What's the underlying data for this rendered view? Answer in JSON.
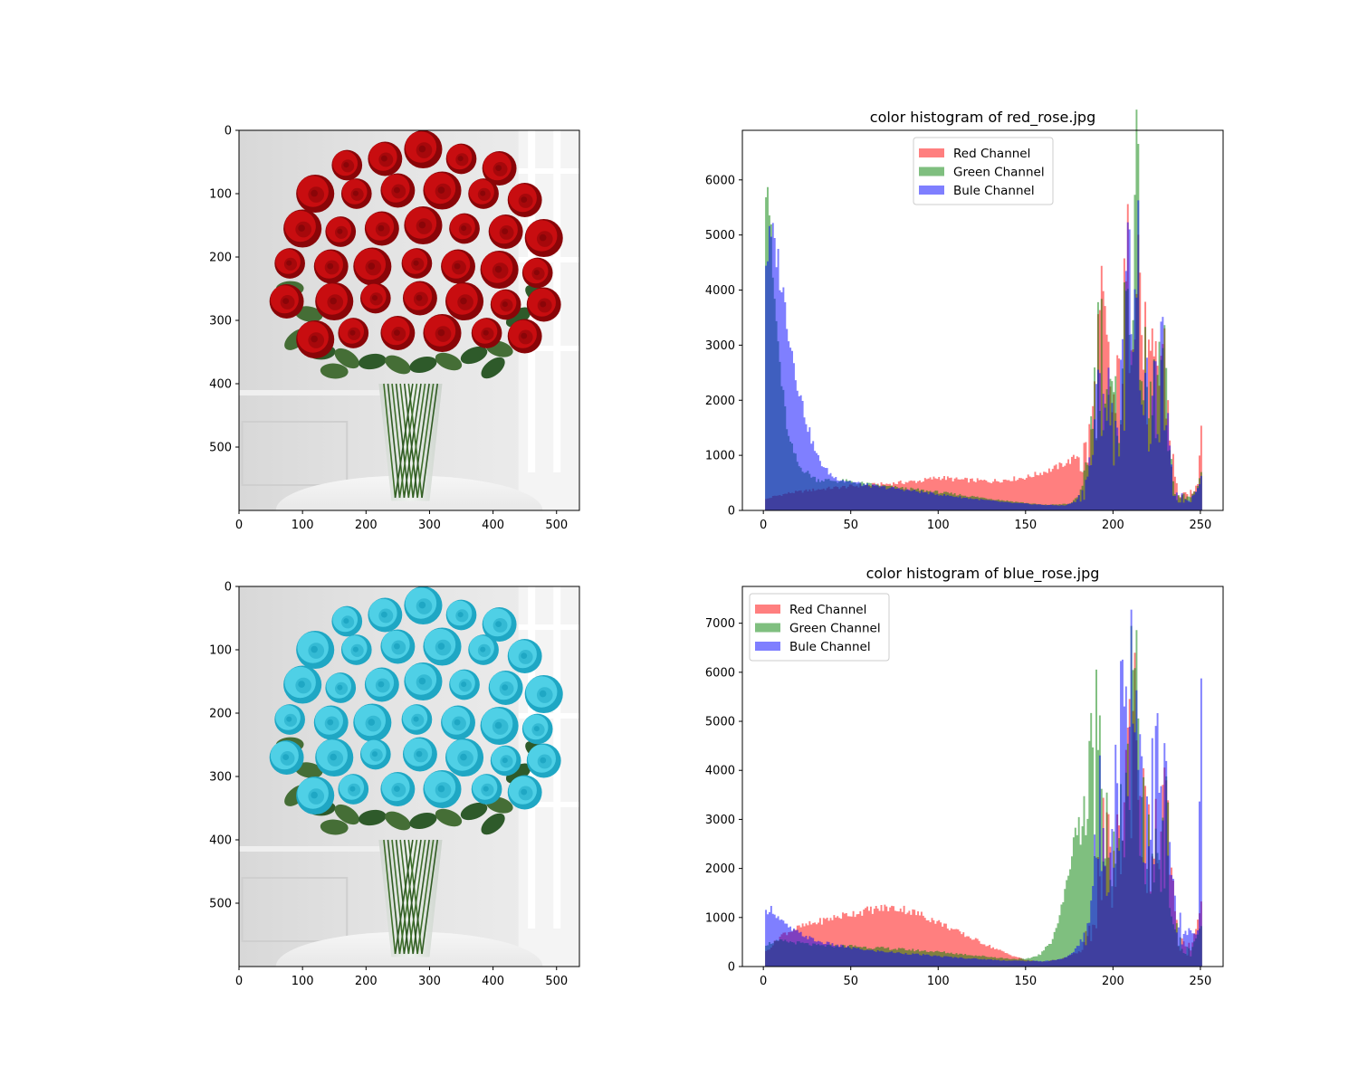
{
  "figure": {
    "background": "#ffffff"
  },
  "images": [
    {
      "xticks": [
        0,
        100,
        200,
        300,
        400,
        500
      ],
      "yticks": [
        0,
        100,
        200,
        300,
        400,
        500
      ],
      "width": 536,
      "height": 600,
      "flower_color": "#c80d10",
      "flower_shade": "#8a0508"
    },
    {
      "xticks": [
        0,
        100,
        200,
        300,
        400,
        500
      ],
      "yticks": [
        0,
        100,
        200,
        300,
        400,
        500
      ],
      "width": 536,
      "height": 600,
      "flower_color": "#4fd0e6",
      "flower_shade": "#1fa7c4"
    }
  ],
  "chart_data": [
    {
      "type": "histogram",
      "title": "color histogram of red_rose.jpg",
      "xlabel": "",
      "ylabel": "",
      "xlim": [
        -12,
        263
      ],
      "ylim": [
        0,
        6900
      ],
      "xticks": [
        0,
        50,
        100,
        150,
        200,
        250
      ],
      "yticks": [
        0,
        1000,
        2000,
        3000,
        4000,
        5000,
        6000
      ],
      "legend": {
        "position": "upper-center",
        "entries": [
          "Red Channel",
          "Green Channel",
          "Bule Channel"
        ]
      },
      "bins": 256,
      "series": [
        {
          "name": "Red Channel",
          "color": "#ff0000",
          "alpha": 0.5,
          "control_points": [
            [
              1,
              200
            ],
            [
              5,
              250
            ],
            [
              15,
              320
            ],
            [
              30,
              380
            ],
            [
              50,
              440
            ],
            [
              70,
              480
            ],
            [
              90,
              540
            ],
            [
              100,
              600
            ],
            [
              110,
              560
            ],
            [
              130,
              530
            ],
            [
              150,
              600
            ],
            [
              165,
              750
            ],
            [
              175,
              900
            ],
            [
              182,
              1050
            ],
            [
              186,
              1400
            ],
            [
              189,
              2200
            ],
            [
              192,
              3700
            ],
            [
              195,
              3300
            ],
            [
              198,
              2400
            ],
            [
              201,
              2000
            ],
            [
              204,
              2900
            ],
            [
              207,
              4200
            ],
            [
              210,
              5200
            ],
            [
              212,
              6300
            ],
            [
              214,
              5500
            ],
            [
              217,
              3200
            ],
            [
              220,
              2700
            ],
            [
              223,
              2500
            ],
            [
              226,
              2900
            ],
            [
              228,
              3500
            ],
            [
              230,
              2600
            ],
            [
              232,
              1600
            ],
            [
              234,
              900
            ],
            [
              236,
              450
            ],
            [
              240,
              260
            ],
            [
              245,
              300
            ],
            [
              248,
              500
            ],
            [
              250,
              1600
            ]
          ]
        },
        {
          "name": "Green Channel",
          "color": "#008000",
          "alpha": 0.5,
          "control_points": [
            [
              1,
              6100
            ],
            [
              2,
              6000
            ],
            [
              3,
              5500
            ],
            [
              5,
              4200
            ],
            [
              7,
              3400
            ],
            [
              10,
              2300
            ],
            [
              14,
              1300
            ],
            [
              20,
              800
            ],
            [
              30,
              560
            ],
            [
              40,
              540
            ],
            [
              50,
              520
            ],
            [
              60,
              470
            ],
            [
              80,
              400
            ],
            [
              100,
              330
            ],
            [
              120,
              250
            ],
            [
              140,
              170
            ],
            [
              160,
              100
            ],
            [
              175,
              120
            ],
            [
              182,
              350
            ],
            [
              186,
              1300
            ],
            [
              189,
              2500
            ],
            [
              192,
              3600
            ],
            [
              195,
              2900
            ],
            [
              198,
              2100
            ],
            [
              201,
              1900
            ],
            [
              204,
              2700
            ],
            [
              207,
              4000
            ],
            [
              210,
              5100
            ],
            [
              212,
              6100
            ],
            [
              214,
              5200
            ],
            [
              217,
              2800
            ],
            [
              220,
              2100
            ],
            [
              223,
              2300
            ],
            [
              226,
              2800
            ],
            [
              228,
              3200
            ],
            [
              230,
              2100
            ],
            [
              232,
              1000
            ],
            [
              234,
              500
            ],
            [
              237,
              300
            ],
            [
              242,
              250
            ],
            [
              247,
              350
            ],
            [
              250,
              700
            ]
          ]
        },
        {
          "name": "Bule Channel",
          "color": "#0000ff",
          "alpha": 0.5,
          "control_points": [
            [
              1,
              4500
            ],
            [
              3,
              4850
            ],
            [
              5,
              4900
            ],
            [
              7,
              4700
            ],
            [
              9,
              4300
            ],
            [
              12,
              3700
            ],
            [
              15,
              3100
            ],
            [
              18,
              2500
            ],
            [
              22,
              1900
            ],
            [
              26,
              1400
            ],
            [
              30,
              1000
            ],
            [
              35,
              750
            ],
            [
              40,
              600
            ],
            [
              50,
              520
            ],
            [
              60,
              450
            ],
            [
              80,
              380
            ],
            [
              100,
              290
            ],
            [
              120,
              210
            ],
            [
              140,
              140
            ],
            [
              160,
              100
            ],
            [
              172,
              90
            ],
            [
              178,
              160
            ],
            [
              183,
              420
            ],
            [
              187,
              1050
            ],
            [
              190,
              1900
            ],
            [
              193,
              2800
            ],
            [
              196,
              2300
            ],
            [
              199,
              1800
            ],
            [
              202,
              1700
            ],
            [
              205,
              2600
            ],
            [
              208,
              4200
            ],
            [
              210,
              5300
            ],
            [
              212,
              5900
            ],
            [
              214,
              4800
            ],
            [
              217,
              2600
            ],
            [
              220,
              1900
            ],
            [
              223,
              2100
            ],
            [
              226,
              2500
            ],
            [
              228,
              2900
            ],
            [
              230,
              1800
            ],
            [
              232,
              950
            ],
            [
              234,
              450
            ],
            [
              237,
              270
            ],
            [
              242,
              220
            ],
            [
              247,
              330
            ],
            [
              250,
              600
            ]
          ]
        }
      ]
    },
    {
      "type": "histogram",
      "title": "color histogram of blue_rose.jpg",
      "xlabel": "",
      "ylabel": "",
      "xlim": [
        -12,
        263
      ],
      "ylim": [
        0,
        7750
      ],
      "xticks": [
        0,
        50,
        100,
        150,
        200,
        250
      ],
      "yticks": [
        0,
        1000,
        2000,
        3000,
        4000,
        5000,
        6000,
        7000
      ],
      "legend": {
        "position": "upper-left",
        "entries": [
          "Red Channel",
          "Green Channel",
          "Bule Channel"
        ]
      },
      "bins": 256,
      "series": [
        {
          "name": "Red Channel",
          "color": "#ff0000",
          "alpha": 0.5,
          "control_points": [
            [
              1,
              300
            ],
            [
              5,
              450
            ],
            [
              10,
              650
            ],
            [
              20,
              800
            ],
            [
              30,
              900
            ],
            [
              40,
              1000
            ],
            [
              50,
              1080
            ],
            [
              60,
              1150
            ],
            [
              70,
              1200
            ],
            [
              80,
              1170
            ],
            [
              90,
              1050
            ],
            [
              100,
              900
            ],
            [
              110,
              720
            ],
            [
              120,
              560
            ],
            [
              130,
              400
            ],
            [
              140,
              250
            ],
            [
              150,
              130
            ],
            [
              160,
              100
            ],
            [
              170,
              150
            ],
            [
              180,
              300
            ],
            [
              186,
              700
            ],
            [
              190,
              1600
            ],
            [
              194,
              2700
            ],
            [
              198,
              2300
            ],
            [
              201,
              2200
            ],
            [
              204,
              3100
            ],
            [
              207,
              4500
            ],
            [
              210,
              5600
            ],
            [
              212,
              6300
            ],
            [
              214,
              5400
            ],
            [
              217,
              3300
            ],
            [
              220,
              2700
            ],
            [
              223,
              2600
            ],
            [
              226,
              3000
            ],
            [
              229,
              3600
            ],
            [
              231,
              3000
            ],
            [
              233,
              1800
            ],
            [
              236,
              800
            ],
            [
              240,
              450
            ],
            [
              245,
              500
            ],
            [
              250,
              1300
            ]
          ]
        },
        {
          "name": "Green Channel",
          "color": "#008000",
          "alpha": 0.5,
          "control_points": [
            [
              1,
              450
            ],
            [
              5,
              500
            ],
            [
              10,
              520
            ],
            [
              20,
              480
            ],
            [
              30,
              430
            ],
            [
              40,
              420
            ],
            [
              50,
              420
            ],
            [
              60,
              390
            ],
            [
              80,
              350
            ],
            [
              100,
              300
            ],
            [
              120,
              230
            ],
            [
              140,
              160
            ],
            [
              150,
              150
            ],
            [
              158,
              250
            ],
            [
              164,
              500
            ],
            [
              168,
              900
            ],
            [
              172,
              1500
            ],
            [
              176,
              2300
            ],
            [
              180,
              3100
            ],
            [
              183,
              3600
            ],
            [
              186,
              3900
            ],
            [
              189,
              5000
            ],
            [
              192,
              5700
            ],
            [
              195,
              4200
            ],
            [
              198,
              2600
            ],
            [
              201,
              2200
            ],
            [
              204,
              2900
            ],
            [
              207,
              4400
            ],
            [
              210,
              5400
            ],
            [
              212,
              6000
            ],
            [
              214,
              5100
            ],
            [
              217,
              3000
            ],
            [
              220,
              2400
            ],
            [
              223,
              2500
            ],
            [
              226,
              2900
            ],
            [
              229,
              3400
            ],
            [
              231,
              2700
            ],
            [
              233,
              1500
            ],
            [
              236,
              700
            ],
            [
              240,
              350
            ],
            [
              245,
              400
            ],
            [
              250,
              800
            ]
          ]
        },
        {
          "name": "Bule Channel",
          "color": "#0000ff",
          "alpha": 0.5,
          "control_points": [
            [
              1,
              1100
            ],
            [
              3,
              1200
            ],
            [
              5,
              1150
            ],
            [
              8,
              1000
            ],
            [
              12,
              850
            ],
            [
              16,
              750
            ],
            [
              20,
              680
            ],
            [
              25,
              600
            ],
            [
              30,
              520
            ],
            [
              40,
              440
            ],
            [
              50,
              380
            ],
            [
              60,
              330
            ],
            [
              80,
              270
            ],
            [
              100,
              210
            ],
            [
              120,
              160
            ],
            [
              140,
              120
            ],
            [
              160,
              110
            ],
            [
              170,
              150
            ],
            [
              176,
              260
            ],
            [
              181,
              500
            ],
            [
              185,
              1000
            ],
            [
              189,
              2200
            ],
            [
              192,
              3400
            ],
            [
              195,
              2900
            ],
            [
              198,
              3300
            ],
            [
              201,
              4000
            ],
            [
              204,
              5300
            ],
            [
              207,
              6800
            ],
            [
              209,
              7100
            ],
            [
              211,
              6800
            ],
            [
              213,
              6000
            ],
            [
              216,
              4600
            ],
            [
              219,
              3500
            ],
            [
              222,
              3900
            ],
            [
              225,
              4400
            ],
            [
              228,
              4100
            ],
            [
              231,
              3300
            ],
            [
              233,
              2000
            ],
            [
              236,
              1000
            ],
            [
              240,
              700
            ],
            [
              245,
              650
            ],
            [
              248,
              700
            ],
            [
              250,
              5700
            ]
          ]
        }
      ]
    }
  ]
}
